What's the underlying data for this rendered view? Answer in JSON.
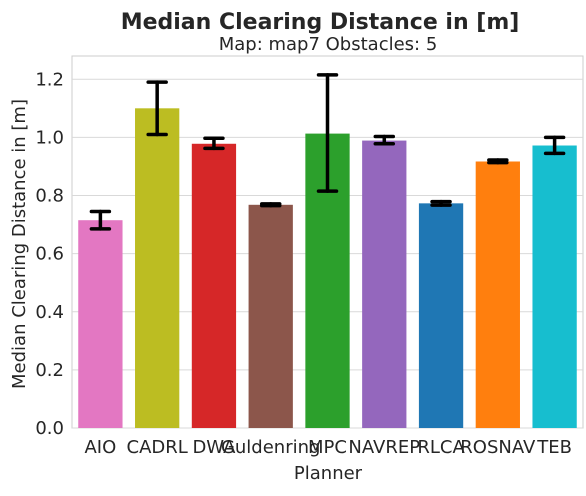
{
  "chart_data": {
    "type": "bar",
    "title": "Median Clearing Distance in [m]",
    "subtitle": "Map: map7 Obstacles: 5",
    "xlabel": "Planner",
    "ylabel": "Median Clearing Distance in [m]",
    "ylim": [
      0,
      1.28
    ],
    "yticks": [
      0.0,
      0.2,
      0.4,
      0.6,
      0.8,
      1.0,
      1.2
    ],
    "ytick_labels": [
      "0.0",
      "0.2",
      "0.4",
      "0.6",
      "0.8",
      "1.0",
      "1.2"
    ],
    "grid": true,
    "categories": [
      "AIO",
      "CADRL",
      "DWA",
      "Guldenring",
      "MPC",
      "NAVREP",
      "RLCA",
      "ROSNAV",
      "TEB"
    ],
    "values": [
      0.715,
      1.1,
      0.978,
      0.768,
      1.013,
      0.989,
      0.773,
      0.917,
      0.972
    ],
    "error_low": [
      0.685,
      1.01,
      0.962,
      0.765,
      0.815,
      0.978,
      0.767,
      0.913,
      0.945
    ],
    "error_high": [
      0.745,
      1.19,
      0.997,
      0.771,
      1.215,
      1.003,
      0.779,
      0.922,
      1.0
    ],
    "colors": [
      "#e377c2",
      "#bcbd22",
      "#d62728",
      "#8c564b",
      "#2ca02c",
      "#9467bd",
      "#1f77b4",
      "#ff7f0e",
      "#17becf"
    ]
  }
}
